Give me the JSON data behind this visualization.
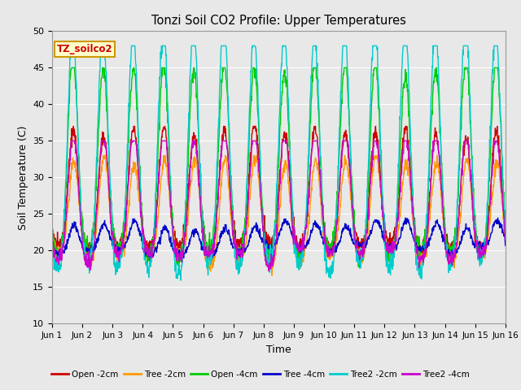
{
  "title": "Tonzi Soil CO2 Profile: Upper Temperatures",
  "xlabel": "Time",
  "ylabel": "Soil Temperature (C)",
  "ylim": [
    10,
    50
  ],
  "xlim": [
    0,
    15
  ],
  "fig_bg_color": "#e8e8e8",
  "plot_bg_color": "#e8e8e8",
  "grid_color": "#ffffff",
  "series_labels": [
    "Open -2cm",
    "Tree -2cm",
    "Open -4cm",
    "Tree -4cm",
    "Tree2 -2cm",
    "Tree2 -4cm"
  ],
  "series_colors": [
    "#cc0000",
    "#ff9900",
    "#00cc00",
    "#0000cc",
    "#00cccc",
    "#cc00cc"
  ],
  "annotation_text": "TZ_soilco2",
  "annotation_color": "#cc0000",
  "annotation_bg": "#ffffcc",
  "annotation_border": "#cc9900",
  "xtick_labels": [
    "Jun 1",
    "Jun 2",
    "Jun 3",
    "Jun 4",
    "Jun 5",
    "Jun 6",
    "Jun 7",
    "Jun 8",
    "Jun 9",
    "Jun 10",
    "Jun 11",
    "Jun 12",
    "Jun 13",
    "Jun 14",
    "Jun 15",
    "Jun 16"
  ],
  "ytick_values": [
    10,
    15,
    20,
    25,
    30,
    35,
    40,
    45,
    50
  ],
  "linewidth": 1.0
}
